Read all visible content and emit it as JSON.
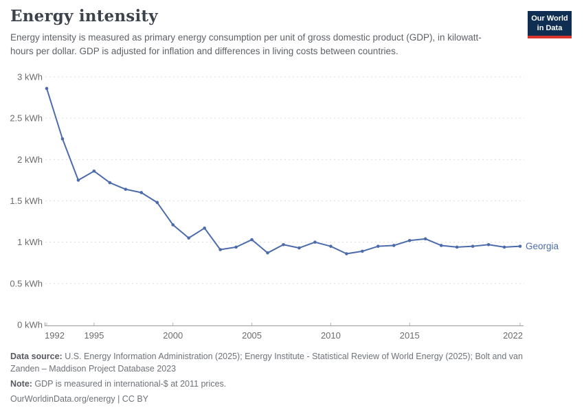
{
  "header": {
    "title": "Energy intensity",
    "subtitle": "Energy intensity is measured as primary energy consumption per unit of gross domestic product (GDP), in kilowatt-hours per dollar. GDP is adjusted for inflation and differences in living costs between countries."
  },
  "logo": {
    "line1": "Our World",
    "line2": "in Data",
    "bg_color": "#102e51",
    "accent_color": "#dc352c"
  },
  "chart_data": {
    "type": "line",
    "title": "Energy intensity",
    "xlabel": "",
    "ylabel": "kWh per dollar",
    "x_range": [
      1992,
      2022
    ],
    "y_range": [
      0,
      3
    ],
    "grid": "horizontal-dashed",
    "legend_position": "end-of-line",
    "x": [
      1992,
      1993,
      1994,
      1995,
      1996,
      1997,
      1998,
      1999,
      2000,
      2001,
      2002,
      2003,
      2004,
      2005,
      2006,
      2007,
      2008,
      2009,
      2010,
      2011,
      2012,
      2013,
      2014,
      2015,
      2016,
      2017,
      2018,
      2019,
      2020,
      2021,
      2022
    ],
    "series": [
      {
        "name": "Georgia",
        "color": "#4c6bab",
        "values": [
          2.86,
          2.25,
          1.75,
          1.86,
          1.72,
          1.64,
          1.6,
          1.48,
          1.21,
          1.05,
          1.17,
          0.91,
          0.94,
          1.03,
          0.87,
          0.97,
          0.93,
          1.0,
          0.95,
          0.86,
          0.89,
          0.95,
          0.96,
          1.02,
          1.04,
          0.96,
          0.94,
          0.95,
          0.97,
          0.94,
          0.95
        ]
      }
    ],
    "end_label": "Georgia",
    "yticks": [
      {
        "value": 0,
        "label": "0 kWh"
      },
      {
        "value": 0.5,
        "label": "0.5 kWh"
      },
      {
        "value": 1,
        "label": "1 kWh"
      },
      {
        "value": 1.5,
        "label": "1.5 kWh"
      },
      {
        "value": 2,
        "label": "2 kWh"
      },
      {
        "value": 2.5,
        "label": "2.5 kWh"
      },
      {
        "value": 3,
        "label": "3 kWh"
      }
    ],
    "xticks": [
      {
        "value": 1992,
        "label": "1992"
      },
      {
        "value": 1995,
        "label": "1995"
      },
      {
        "value": 2000,
        "label": "2000"
      },
      {
        "value": 2005,
        "label": "2005"
      },
      {
        "value": 2010,
        "label": "2010"
      },
      {
        "value": 2015,
        "label": "2015"
      },
      {
        "value": 2022,
        "label": "2022"
      }
    ],
    "colors": {
      "gridline": "#dcdcdc",
      "axis": "#9a9a9a",
      "tick": "#b0b0b0",
      "tick_text": "#6b6b6b"
    }
  },
  "footer": {
    "source_label": "Data source:",
    "source_text": " U.S. Energy Information Administration (2025); Energy Institute - Statistical Review of World Energy (2025); Bolt and van Zanden – Maddison Project Database 2023",
    "note_label": "Note:",
    "note_text": " GDP is measured in international-$ at 2011 prices.",
    "link": "OurWorldinData.org/energy | CC BY"
  }
}
